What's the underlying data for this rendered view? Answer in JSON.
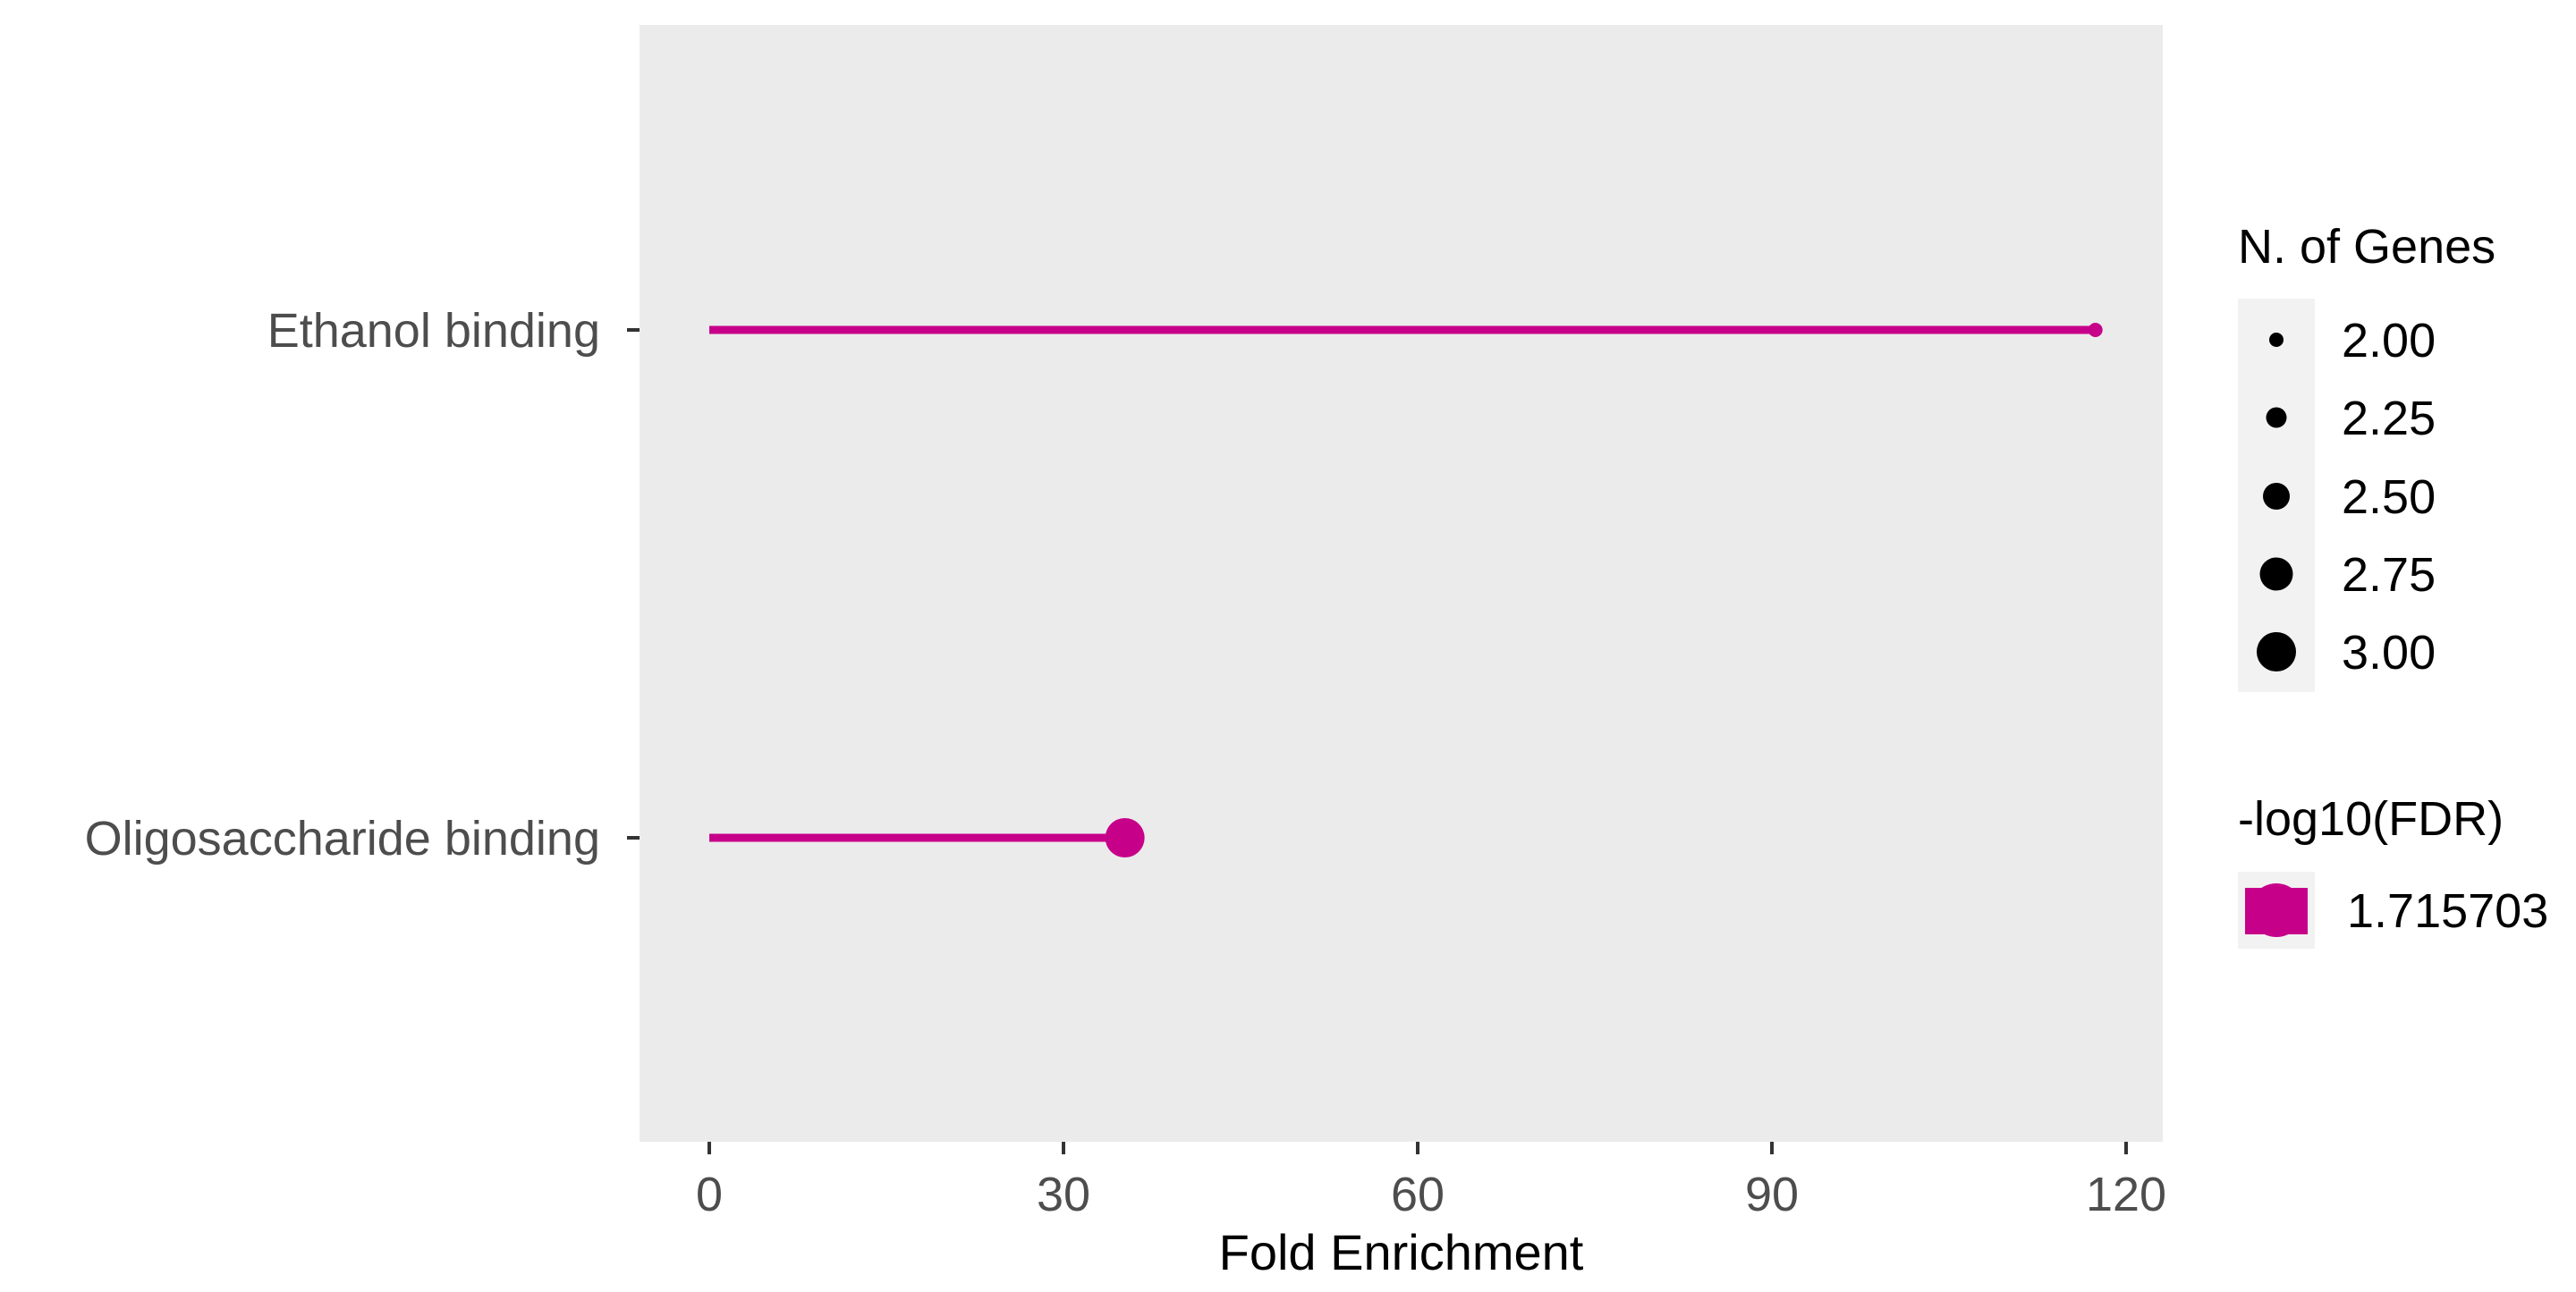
{
  "chart_data": {
    "type": "lollipop",
    "title": "",
    "xlabel": "Fold Enrichment",
    "ylabel": "",
    "xlim": [
      -9.5,
      204
    ],
    "x_ticks": [
      0,
      30,
      60,
      90,
      120
    ],
    "x_tick_labels": [
      "0",
      "30",
      "60",
      "90",
      "120"
    ],
    "categories": [
      "Ethanol binding",
      "Oligosaccharide binding"
    ],
    "values": [
      117.4,
      35.2
    ],
    "n_genes": [
      2,
      3
    ],
    "neg_log10_fdr": [
      1.715703,
      1.715703
    ],
    "grid": false,
    "panel_background": "#ebebeb",
    "series_color": "#c7008a",
    "legend_position": "right",
    "legends": [
      {
        "title": "N. of Genes",
        "kind": "size",
        "entries": [
          {
            "label": "2.00",
            "value": 2.0
          },
          {
            "label": "2.25",
            "value": 2.25
          },
          {
            "label": "2.50",
            "value": 2.5
          },
          {
            "label": "2.75",
            "value": 2.75
          },
          {
            "label": "3.00",
            "value": 3.0
          }
        ]
      },
      {
        "title": "-log10(FDR)",
        "kind": "color",
        "entries": [
          {
            "label": "1.715703",
            "color": "#c7008a"
          }
        ]
      }
    ]
  }
}
